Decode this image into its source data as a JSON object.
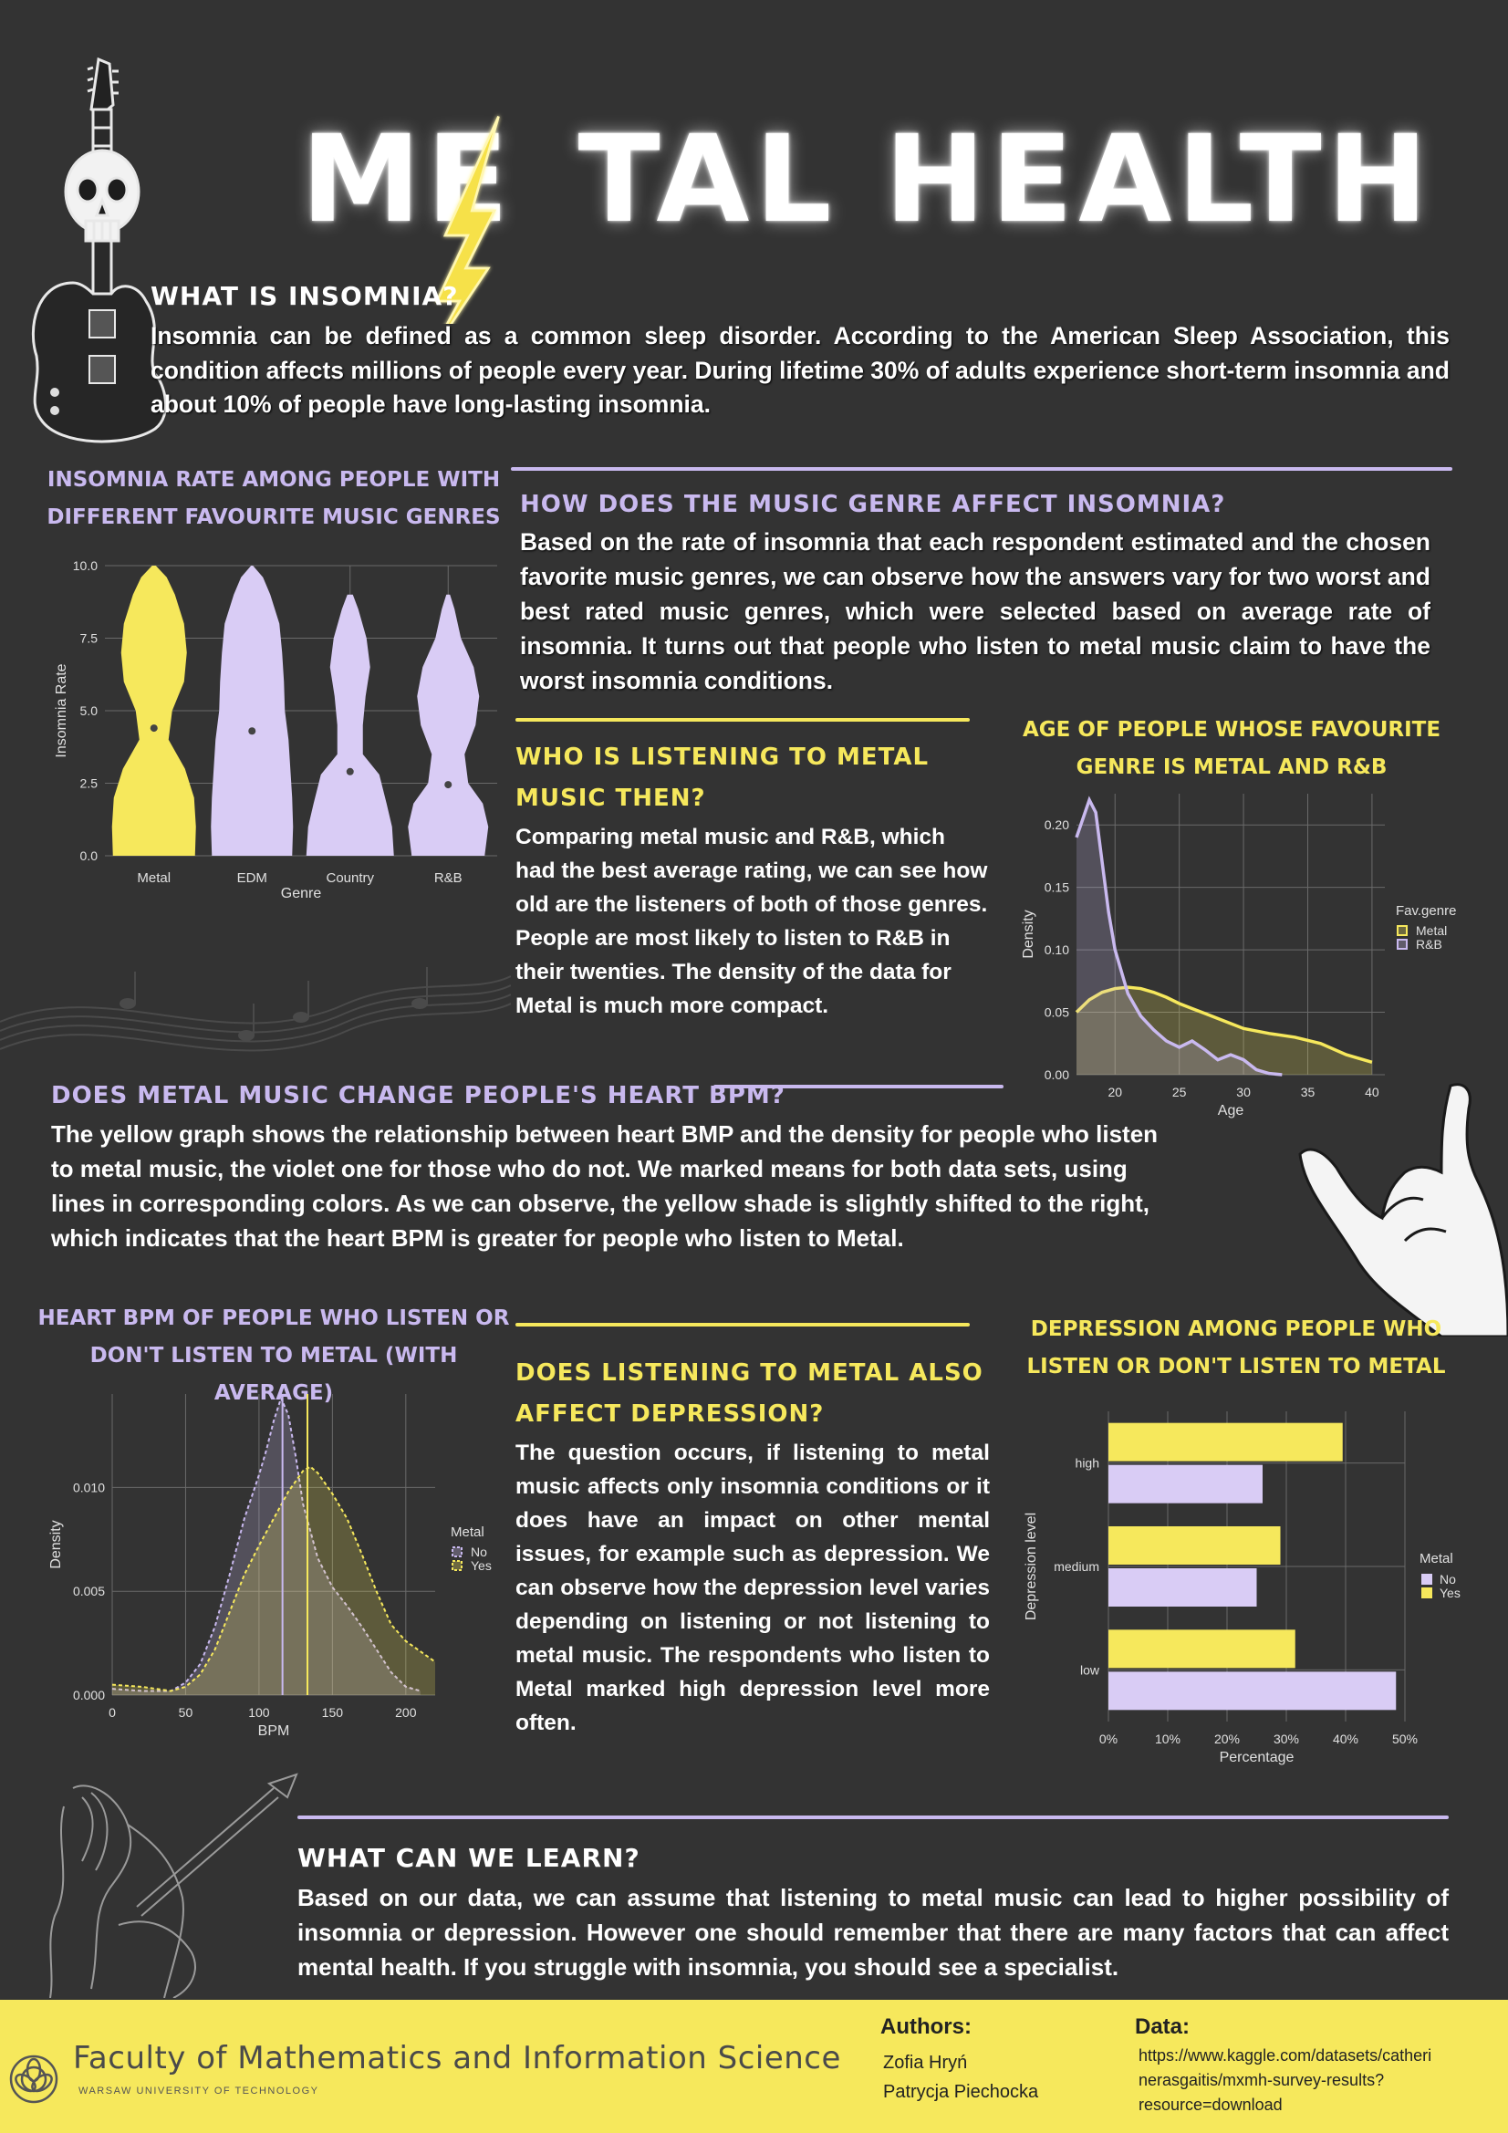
{
  "header": {
    "title_left": "ME",
    "title_right": "TAL HEALTH"
  },
  "intro": {
    "heading": "WHAT IS INSOMNIA?",
    "text": "Insomnia can be defined as a common sleep disorder. According to the American Sleep Association, this condition affects millions of people every year. During lifetime 30% of adults experience short-term insomnia and about 10% of people have long-lasting insomnia."
  },
  "genre_section": {
    "heading": "HOW DOES THE MUSIC GENRE AFFECT INSOMNIA?",
    "text": "Based on the rate of insomnia that each respondent estimated and the chosen favorite music genres, we can observe how the answers vary for two worst and best rated music genres, which were selected based on average rate of insomnia. It turns out that people who listen to metal music claim to have the worst insomnia conditions."
  },
  "who_section": {
    "heading": "WHO IS LISTENING TO METAL MUSIC THEN?",
    "text": "Comparing metal music and R&B, which had the best average rating, we can see how old are the listeners of both of those genres. People are most likely to listen to R&B in their twenties. The density of the data for Metal is much more compact."
  },
  "bpm_section": {
    "heading": "DOES METAL MUSIC CHANGE PEOPLE'S HEART BPM?",
    "text": "The yellow graph shows the relationship between heart BMP and the density for people who listen to metal music, the violet one for those who do not. We marked means for both data sets, using lines in corresponding colors. As we can observe, the yellow shade is slightly shifted to the right, which indicates that the heart BPM is greater for people who listen to Metal."
  },
  "depression_section": {
    "heading": "DOES LISTENING TO METAL ALSO AFFECT DEPRESSION?",
    "text": "The question occurs, if listening to metal music affects only insomnia conditions or it does have an impact on other mental issues, for example such as depression. We can observe how the depression level varies depending on listening or not listening to metal music. The respondents who listen to Metal marked high depression level more often."
  },
  "learn_section": {
    "heading": "WHAT CAN WE LEARN?",
    "text": "Based on our data, we can assume that listening to metal music can lead to higher possibility of insomnia or depression. However one should remember that there are many factors that can affect mental health. If you struggle with insomnia, you should see a specialist."
  },
  "footer": {
    "faculty": "Faculty of Mathematics and Information Science",
    "university": "WARSAW UNIVERSITY OF TECHNOLOGY",
    "authors_label": "Authors:",
    "authors": [
      "Zofia Hryń",
      "Patrycja Piechocka"
    ],
    "data_label": "Data:",
    "data_url_lines": [
      "https://www.kaggle.com/datasets/catheri",
      "nerasgaitis/mxmh-survey-results?",
      "resource=download"
    ]
  },
  "colors": {
    "background": "#333333",
    "yellow": "#f6e85c",
    "violet": "#c9b9ef",
    "footer": "#f6e85c"
  },
  "chart_data": [
    {
      "type": "violin",
      "title": "INSOMNIA RATE AMONG PEOPLE WITH DIFFERENT FAVOURITE MUSIC GENRES",
      "xlabel": "Genre",
      "ylabel": "Insomnia Rate",
      "ylim": [
        0,
        10
      ],
      "yticks": [
        "0.0",
        "2.5",
        "5.0",
        "7.5",
        "10.0"
      ],
      "categories": [
        "Metal",
        "EDM",
        "Country",
        "R&B"
      ],
      "means": [
        4.4,
        4.3,
        2.9,
        2.45
      ],
      "ranges": [
        [
          0,
          10
        ],
        [
          0,
          10
        ],
        [
          0,
          9
        ],
        [
          0,
          9
        ]
      ],
      "colors": [
        "#f6e85c",
        "#d9ccf5",
        "#d9ccf5",
        "#d9ccf5"
      ],
      "grid": true
    },
    {
      "type": "area",
      "title": "AGE OF PEOPLE WHOSE FAVOURITE GENRE IS METAL AND R&B",
      "xlabel": "Age",
      "ylabel": "Density",
      "xlim": [
        17,
        41
      ],
      "ylim": [
        0,
        0.225
      ],
      "xticks": [
        "20",
        "25",
        "30",
        "35",
        "40"
      ],
      "yticks": [
        "0.00",
        "0.05",
        "0.10",
        "0.15",
        "0.20"
      ],
      "legend_title": "Fav.genre",
      "legend_position": "right",
      "series": [
        {
          "name": "Metal",
          "color": "#f6e85c",
          "x": [
            17,
            18,
            19,
            20,
            21,
            22,
            23,
            24,
            25,
            26,
            27,
            28,
            29,
            30,
            32,
            34,
            36,
            38,
            40
          ],
          "values": [
            0.05,
            0.06,
            0.066,
            0.069,
            0.07,
            0.069,
            0.066,
            0.062,
            0.057,
            0.053,
            0.049,
            0.045,
            0.041,
            0.037,
            0.033,
            0.03,
            0.025,
            0.016,
            0.01
          ]
        },
        {
          "name": "R&B",
          "color": "#c9b9ef",
          "x": [
            17,
            18,
            18.5,
            19,
            19.5,
            20,
            21,
            22,
            23,
            24,
            25,
            26,
            27,
            28,
            29,
            30,
            31,
            32,
            33
          ],
          "values": [
            0.19,
            0.22,
            0.21,
            0.17,
            0.13,
            0.1,
            0.065,
            0.047,
            0.036,
            0.027,
            0.022,
            0.027,
            0.02,
            0.012,
            0.016,
            0.012,
            0.004,
            0.001,
            0
          ]
        }
      ],
      "grid": true
    },
    {
      "type": "area",
      "title": "HEART BPM OF PEOPLE WHO LISTEN OR DON'T LISTEN TO METAL (WITH AVERAGE)",
      "xlabel": "BPM",
      "ylabel": "Density",
      "xlim": [
        0,
        220
      ],
      "ylim": [
        0,
        0.0145
      ],
      "xticks": [
        "0",
        "50",
        "100",
        "150",
        "200"
      ],
      "yticks": [
        "0.000",
        "0.005",
        "0.010"
      ],
      "legend_title": "Metal",
      "legend_position": "right",
      "means": {
        "No": 116,
        "Yes": 133
      },
      "series": [
        {
          "name": "No",
          "color": "#c9b9ef",
          "x": [
            0,
            20,
            40,
            50,
            60,
            70,
            80,
            90,
            100,
            105,
            110,
            115,
            120,
            125,
            130,
            140,
            150,
            160,
            170,
            180,
            190,
            200,
            210
          ],
          "values": [
            0.0003,
            0.0002,
            0.0002,
            0.0006,
            0.0015,
            0.0033,
            0.0058,
            0.0085,
            0.0106,
            0.0118,
            0.0132,
            0.0143,
            0.0135,
            0.0115,
            0.0092,
            0.0066,
            0.0052,
            0.0043,
            0.0033,
            0.0022,
            0.0011,
            0.0004,
            0.0002
          ]
        },
        {
          "name": "Yes",
          "color": "#f6e85c",
          "x": [
            0,
            20,
            40,
            50,
            60,
            70,
            80,
            90,
            100,
            110,
            120,
            130,
            135,
            140,
            150,
            160,
            170,
            180,
            190,
            200,
            210,
            220
          ],
          "values": [
            0.0005,
            0.0004,
            0.0002,
            0.0004,
            0.001,
            0.0022,
            0.004,
            0.0058,
            0.0072,
            0.0085,
            0.0098,
            0.0108,
            0.011,
            0.0107,
            0.0097,
            0.0085,
            0.0068,
            0.005,
            0.0034,
            0.0026,
            0.0021,
            0.0016
          ]
        }
      ],
      "grid": true
    },
    {
      "type": "bar",
      "orientation": "horizontal",
      "title": "DEPRESSION AMONG PEOPLE WHO LISTEN OR DON'T LISTEN TO METAL",
      "xlabel": "Percentage",
      "ylabel": "Depression level",
      "xlim": [
        0,
        50
      ],
      "xticks": [
        "0%",
        "10%",
        "20%",
        "30%",
        "40%",
        "50%"
      ],
      "categories": [
        "high",
        "medium",
        "low"
      ],
      "legend_title": "Metal",
      "legend_position": "right",
      "series": [
        {
          "name": "No",
          "color": "#d9ccf5",
          "values": [
            26,
            25,
            48.5
          ]
        },
        {
          "name": "Yes",
          "color": "#f6e85c",
          "values": [
            39.5,
            29,
            31.5
          ]
        }
      ],
      "grid": true
    }
  ]
}
